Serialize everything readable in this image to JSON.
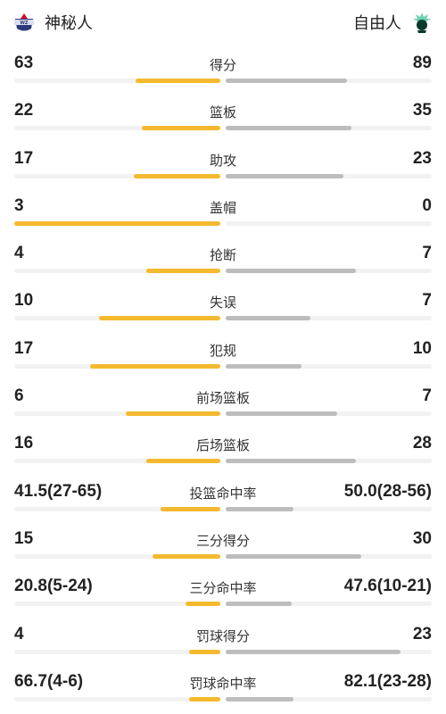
{
  "header": {
    "home_team": "神秘人",
    "away_team": "自由人",
    "home_logo_icon": "wizards-logo-icon",
    "away_logo_icon": "liberty-logo-icon"
  },
  "colors": {
    "home_bar": "#f4b92f",
    "away_bar": "#bdbdbd",
    "track": "#f2f2f2"
  },
  "stats": [
    {
      "label": "得分",
      "home": "63",
      "away": "89",
      "home_fill": 0.41,
      "away_fill": 0.59
    },
    {
      "label": "篮板",
      "home": "22",
      "away": "35",
      "home_fill": 0.38,
      "away_fill": 0.61
    },
    {
      "label": "助攻",
      "home": "17",
      "away": "23",
      "home_fill": 0.42,
      "away_fill": 0.57
    },
    {
      "label": "盖帽",
      "home": "3",
      "away": "0",
      "home_fill": 1.0,
      "away_fill": 0.0
    },
    {
      "label": "抢断",
      "home": "4",
      "away": "7",
      "home_fill": 0.36,
      "away_fill": 0.63
    },
    {
      "label": "失误",
      "home": "10",
      "away": "7",
      "home_fill": 0.59,
      "away_fill": 0.41
    },
    {
      "label": "犯规",
      "home": "17",
      "away": "10",
      "home_fill": 0.63,
      "away_fill": 0.37
    },
    {
      "label": "前场篮板",
      "home": "6",
      "away": "7",
      "home_fill": 0.46,
      "away_fill": 0.54
    },
    {
      "label": "后场篮板",
      "home": "16",
      "away": "28",
      "home_fill": 0.36,
      "away_fill": 0.63
    },
    {
      "label": "投篮命中率",
      "home": "41.5(27-65)",
      "away": "50.0(28-56)",
      "home_fill": 0.29,
      "away_fill": 0.33
    },
    {
      "label": "三分得分",
      "home": "15",
      "away": "30",
      "home_fill": 0.33,
      "away_fill": 0.66
    },
    {
      "label": "三分命中率",
      "home": "20.8(5-24)",
      "away": "47.6(10-21)",
      "home_fill": 0.17,
      "away_fill": 0.32
    },
    {
      "label": "罚球得分",
      "home": "4",
      "away": "23",
      "home_fill": 0.15,
      "away_fill": 0.85
    },
    {
      "label": "罚球命中率",
      "home": "66.7(4-6)",
      "away": "82.1(23-28)",
      "home_fill": 0.15,
      "away_fill": 0.33
    }
  ]
}
